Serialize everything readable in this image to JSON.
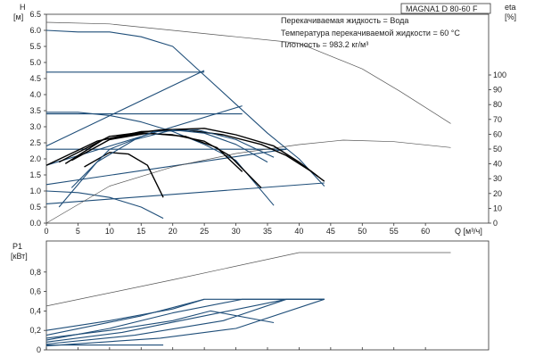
{
  "colors": {
    "curve_blue": "#1f4e79",
    "curve_black": "#000000",
    "thin_line": "#555555",
    "grid": "#dddddd",
    "axis": "#333333"
  },
  "chart_data": [
    {
      "type": "line",
      "title": "MAGNA1 D 80-60 F",
      "info_lines": [
        "Перекачиваемая жидкость = Вода",
        "Температура перекачиваемой жидкости = 60 °C",
        "Плотность = 983.2 кг/м³"
      ],
      "ylabel": "H",
      "yunit": "[м]",
      "ylabel_right": "eta",
      "yunit_right": "[%]",
      "xlabel": "Q [м³/ч]",
      "xlim": [
        0,
        70
      ],
      "ylim": [
        0,
        6.5
      ],
      "ylim_right": [
        0,
        100
      ],
      "x_ticks": [
        0,
        5,
        10,
        15,
        20,
        25,
        30,
        35,
        40,
        45,
        50,
        55,
        60
      ],
      "y_ticks": [
        0,
        0.5,
        1.0,
        1.5,
        2.0,
        2.5,
        3.0,
        3.5,
        4.0,
        4.5,
        5.0,
        5.5,
        6.0,
        6.5
      ],
      "y_tick_labels": [
        "0.0",
        "0.5",
        "1.0",
        "1.5",
        "2.0",
        "2.5",
        "3.0",
        "3.5",
        "4.0",
        "4.5",
        "5.0",
        "5.5",
        "6.0",
        "6.5"
      ],
      "y_right_ticks": [
        0,
        10,
        20,
        30,
        40,
        50,
        60,
        70,
        80,
        90,
        100
      ],
      "grid": false,
      "series": [
        {
          "kind": "head",
          "color": "blue",
          "points": [
            [
              0,
              6.0
            ],
            [
              5,
              5.95
            ],
            [
              10,
              5.95
            ],
            [
              15,
              5.8
            ],
            [
              20,
              5.5
            ],
            [
              25,
              4.6
            ],
            [
              30,
              3.7
            ],
            [
              35,
              2.8
            ],
            [
              40,
              2.0
            ],
            [
              44,
              1.15
            ]
          ]
        },
        {
          "kind": "head",
          "color": "blue",
          "points": [
            [
              0,
              3.45
            ],
            [
              5,
              3.45
            ],
            [
              10,
              3.35
            ],
            [
              15,
              3.15
            ],
            [
              20,
              2.85
            ],
            [
              25,
              2.45
            ],
            [
              30,
              1.95
            ],
            [
              36,
              0.55
            ]
          ]
        },
        {
          "kind": "head",
          "color": "blue",
          "points": [
            [
              0,
              1.0
            ],
            [
              5,
              0.95
            ],
            [
              10,
              0.8
            ],
            [
              15,
              0.5
            ],
            [
              18.5,
              0.15
            ]
          ]
        },
        {
          "kind": "system",
          "color": "blue",
          "points": [
            [
              0,
              2.4
            ],
            [
              25,
              4.75
            ]
          ]
        },
        {
          "kind": "system",
          "color": "blue",
          "points": [
            [
              0,
              1.8
            ],
            [
              31,
              3.65
            ]
          ]
        },
        {
          "kind": "system",
          "color": "blue",
          "points": [
            [
              0,
              1.2
            ],
            [
              38,
              2.3
            ]
          ]
        },
        {
          "kind": "system",
          "color": "blue",
          "points": [
            [
              0,
              0.6
            ],
            [
              44,
              1.25
            ]
          ]
        },
        {
          "kind": "setpoint",
          "color": "blue",
          "points": [
            [
              0,
              4.7
            ],
            [
              25,
              4.7
            ]
          ]
        },
        {
          "kind": "setpoint",
          "color": "blue",
          "points": [
            [
              0,
              3.4
            ],
            [
              31,
              3.4
            ]
          ]
        },
        {
          "kind": "setpoint",
          "color": "blue",
          "points": [
            [
              0,
              2.3
            ],
            [
              38,
              2.3
            ]
          ]
        },
        {
          "kind": "max",
          "color": "thin",
          "points": [
            [
              0,
              6.25
            ],
            [
              10,
              6.2
            ],
            [
              20,
              6.0
            ],
            [
              30,
              5.8
            ],
            [
              40,
              5.6
            ],
            [
              50,
              4.8
            ],
            [
              56,
              4.1
            ],
            [
              64,
              3.1
            ]
          ]
        },
        {
          "kind": "efficiency",
          "color": "thin",
          "axis": "right",
          "points": [
            [
              0,
              0
            ],
            [
              10,
              25
            ],
            [
              20,
              38
            ],
            [
              30,
              47
            ],
            [
              40,
              53
            ],
            [
              47,
              56
            ],
            [
              55,
              55
            ],
            [
              64,
              51
            ]
          ]
        },
        {
          "kind": "head",
          "color": "black",
          "points": [
            [
              0,
              1.8
            ],
            [
              8,
              2.55
            ],
            [
              15,
              2.85
            ],
            [
              22,
              2.9
            ],
            [
              28,
              2.75
            ],
            [
              34,
              2.45
            ],
            [
              38,
              2.1
            ],
            [
              42,
              1.6
            ],
            [
              44,
              1.3
            ]
          ]
        },
        {
          "kind": "head",
          "color": "black",
          "points": [
            [
              2,
              1.9
            ],
            [
              10,
              2.7
            ],
            [
              18,
              2.9
            ],
            [
              25,
              2.95
            ],
            [
              30,
              2.75
            ],
            [
              36,
              2.4
            ],
            [
              40,
              1.9
            ],
            [
              43,
              1.45
            ]
          ]
        },
        {
          "kind": "head",
          "color": "black",
          "points": [
            [
              3,
              1.85
            ],
            [
              9,
              2.6
            ],
            [
              15,
              2.8
            ],
            [
              20,
              2.75
            ],
            [
              25,
              2.55
            ],
            [
              29,
              2.1
            ],
            [
              34,
              1.1
            ]
          ]
        },
        {
          "kind": "head",
          "color": "black",
          "points": [
            [
              4,
              1.95
            ],
            [
              10,
              2.6
            ],
            [
              16,
              2.8
            ],
            [
              22,
              2.7
            ],
            [
              27,
              2.35
            ],
            [
              31,
              1.6
            ]
          ]
        },
        {
          "kind": "head",
          "color": "black",
          "points": [
            [
              6,
              1.75
            ],
            [
              10,
              2.2
            ],
            [
              13,
              2.15
            ],
            [
              16,
              1.8
            ],
            [
              18.5,
              0.8
            ]
          ]
        },
        {
          "kind": "head",
          "color": "blue",
          "points": [
            [
              2,
              0.5
            ],
            [
              8,
              1.9
            ],
            [
              14,
              2.6
            ],
            [
              20,
              2.9
            ],
            [
              25,
              2.8
            ],
            [
              30,
              2.45
            ],
            [
              35,
              1.9
            ]
          ]
        },
        {
          "kind": "head",
          "color": "blue",
          "points": [
            [
              4,
              1.1
            ],
            [
              10,
              2.3
            ],
            [
              17,
              2.85
            ],
            [
              24,
              2.9
            ],
            [
              30,
              2.6
            ],
            [
              36,
              2.05
            ]
          ]
        }
      ]
    },
    {
      "type": "line",
      "ylabel": "P1",
      "yunit": "[кВт]",
      "xlim": [
        0,
        70
      ],
      "ylim": [
        0,
        1.0
      ],
      "y_ticks": [
        0,
        0.2,
        0.4,
        0.6,
        0.8
      ],
      "y_tick_labels": [
        "0",
        "0,2",
        "0,4",
        "0,6",
        "0,8"
      ],
      "series": [
        {
          "kind": "max",
          "color": "thin",
          "points": [
            [
              0,
              0.45
            ],
            [
              20,
              0.72
            ],
            [
              40,
              1.0
            ],
            [
              64,
              1.0
            ]
          ]
        },
        {
          "kind": "power",
          "color": "blue",
          "points": [
            [
              0,
              0.05
            ],
            [
              18.5,
              0.05
            ]
          ]
        },
        {
          "kind": "power",
          "color": "blue",
          "points": [
            [
              0,
              0.12
            ],
            [
              10,
              0.2
            ],
            [
              20,
              0.3
            ],
            [
              26,
              0.4
            ],
            [
              36,
              0.28
            ]
          ]
        },
        {
          "kind": "power",
          "color": "blue",
          "points": [
            [
              0,
              0.2
            ],
            [
              10,
              0.3
            ],
            [
              20,
              0.42
            ],
            [
              25,
              0.52
            ],
            [
              44,
              0.52
            ]
          ]
        },
        {
          "kind": "power",
          "color": "blue",
          "points": [
            [
              0,
              0.1
            ],
            [
              10,
              0.22
            ],
            [
              20,
              0.38
            ],
            [
              31,
              0.52
            ],
            [
              44,
              0.52
            ]
          ]
        },
        {
          "kind": "power",
          "color": "blue",
          "points": [
            [
              0,
              0.08
            ],
            [
              12,
              0.18
            ],
            [
              25,
              0.35
            ],
            [
              38,
              0.52
            ],
            [
              44,
              0.52
            ]
          ]
        },
        {
          "kind": "power",
          "color": "blue",
          "points": [
            [
              0,
              0.06
            ],
            [
              14,
              0.15
            ],
            [
              28,
              0.3
            ],
            [
              38,
              0.52
            ]
          ]
        },
        {
          "kind": "power",
          "color": "blue",
          "points": [
            [
              0,
              0.15
            ],
            [
              15,
              0.35
            ],
            [
              25,
              0.52
            ]
          ]
        },
        {
          "kind": "power",
          "color": "blue",
          "points": [
            [
              0,
              0.04
            ],
            [
              18,
              0.12
            ],
            [
              30,
              0.22
            ],
            [
              44,
              0.52
            ]
          ]
        }
      ]
    }
  ]
}
